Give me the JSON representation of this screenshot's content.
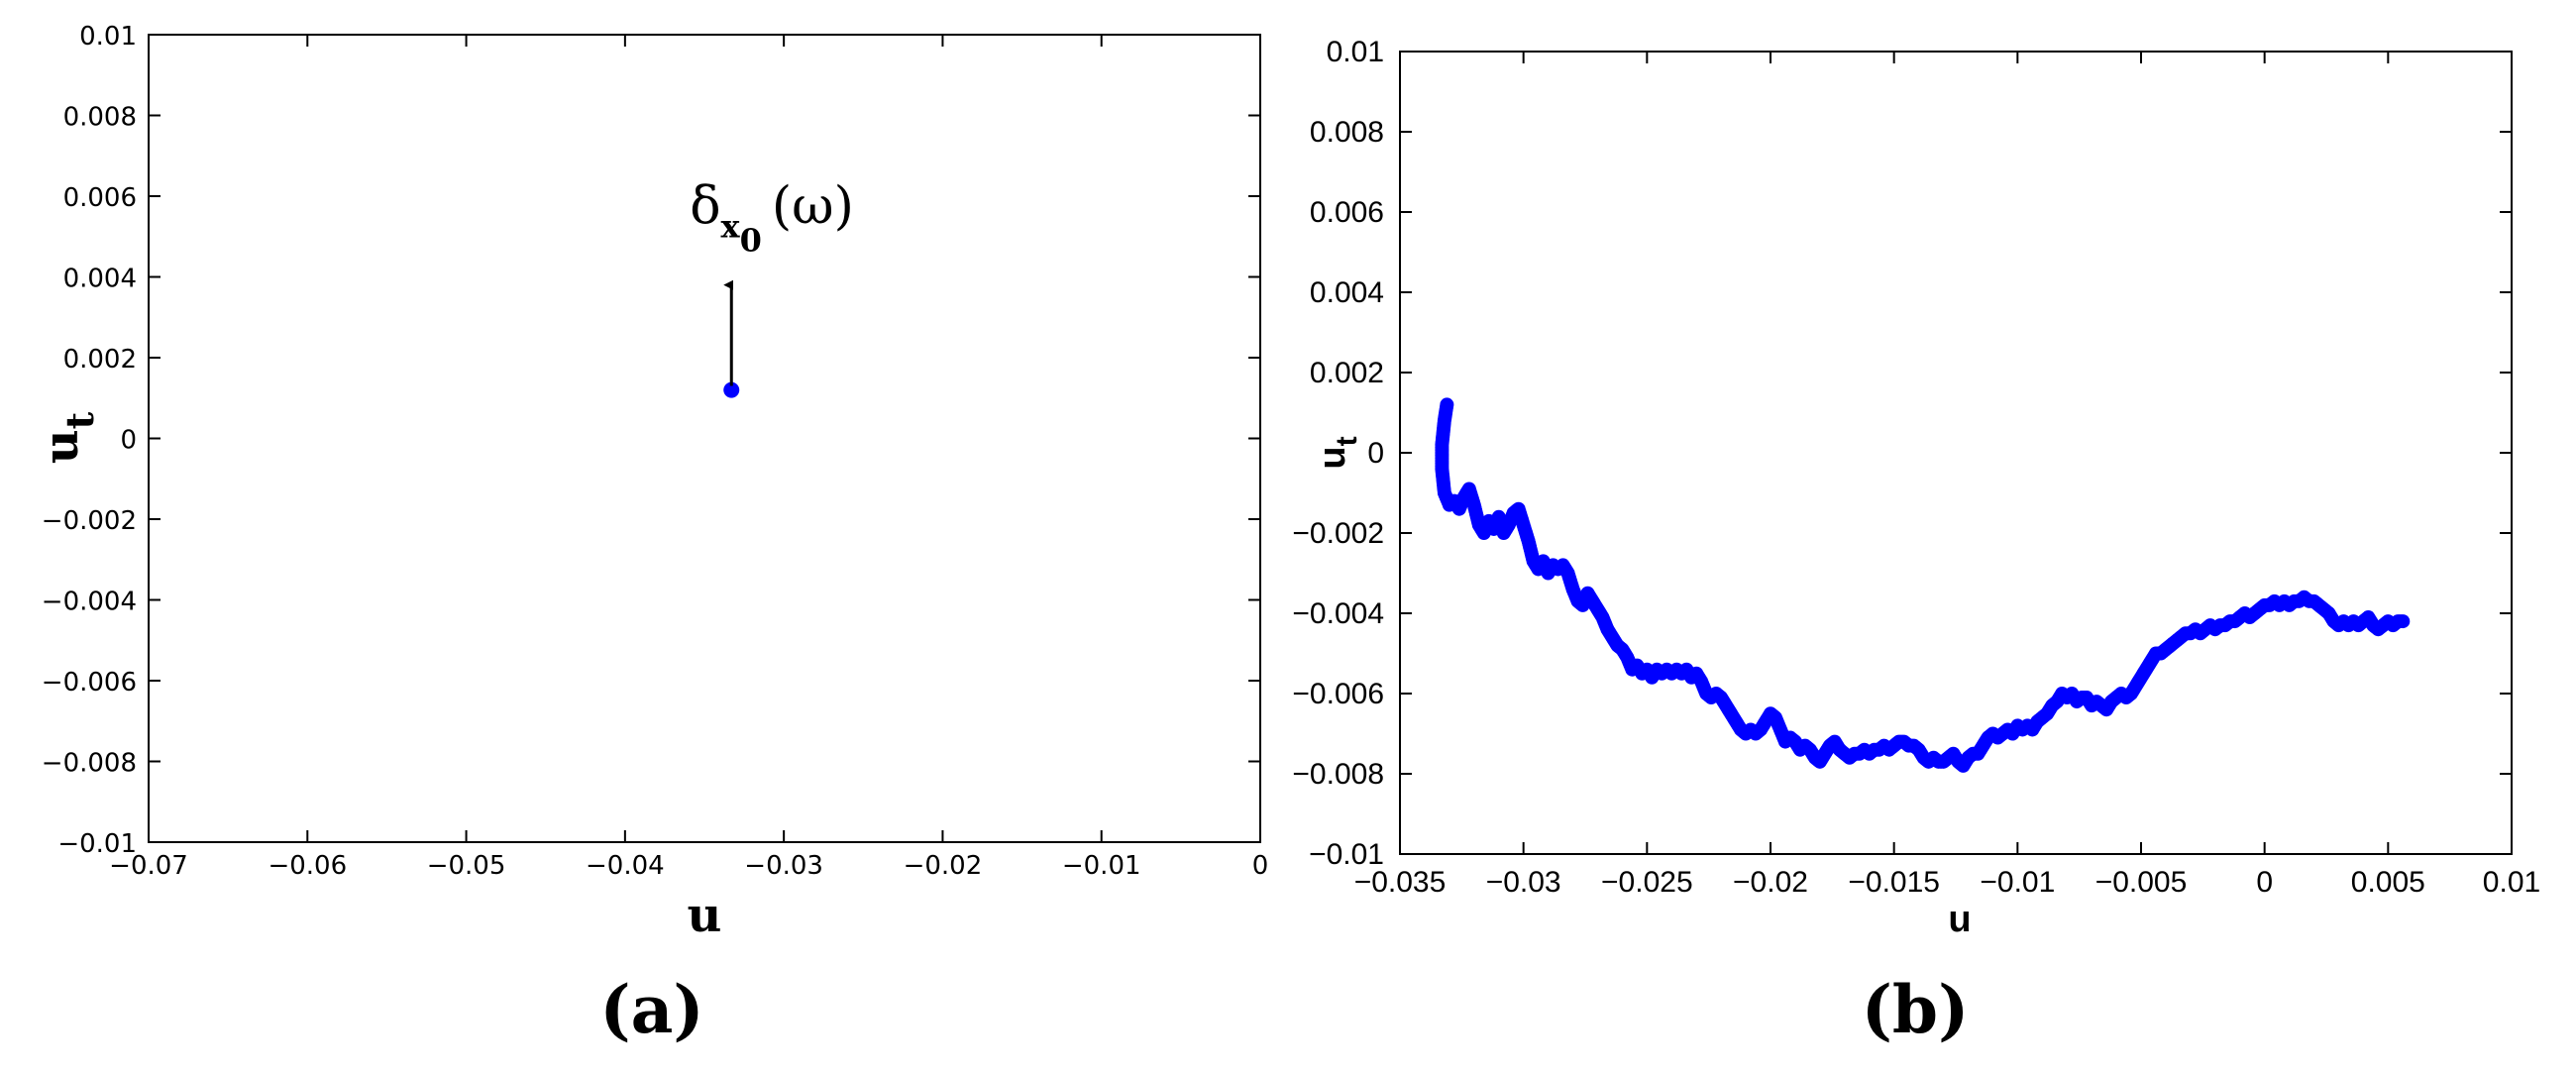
{
  "chart_data": [
    {
      "type": "scatter",
      "caption": "(a)",
      "xlabel": "u",
      "ylabel_main": "u",
      "ylabel_sub": "t",
      "xlim": [
        -0.07,
        0
      ],
      "ylim": [
        -0.01,
        0.01
      ],
      "x_ticks": [
        "-0.07",
        "-0.06",
        "-0.05",
        "-0.04",
        "-0.03",
        "-0.02",
        "-0.01",
        "0"
      ],
      "y_ticks": [
        "0.01",
        "0.008",
        "0.006",
        "0.004",
        "0.002",
        "0",
        "-0.002",
        "-0.004",
        "-0.006",
        "-0.008",
        "-0.01"
      ],
      "grid": false,
      "point_color": "#0000ff",
      "points": [
        {
          "x": -0.0333,
          "y": 0.0012
        }
      ],
      "annotation": {
        "text_delta": "δ",
        "sub_x": "x",
        "sub_0": "0",
        "omega": "(ω)",
        "arrow_from": [
          -0.0333,
          0.0013
        ],
        "arrow_to": [
          -0.0333,
          0.0038
        ]
      }
    },
    {
      "type": "scatter",
      "caption": "(b)",
      "xlabel": "u",
      "ylabel_main": "u",
      "ylabel_sub": "t",
      "xlim": [
        -0.035,
        0.01
      ],
      "ylim": [
        -0.01,
        0.01
      ],
      "x_ticks": [
        "-0.035",
        "-0.03",
        "-0.025",
        "-0.02",
        "-0.015",
        "-0.01",
        "-0.005",
        "0",
        "0.005",
        "0.01"
      ],
      "y_ticks": [
        "0.01",
        "0.008",
        "0.006",
        "0.004",
        "0.002",
        "0",
        "-0.002",
        "-0.004",
        "-0.006",
        "-0.008",
        "-0.01"
      ],
      "grid": false,
      "point_color": "#0000ff",
      "trajectory": [
        [
          -0.0331,
          0.0012
        ],
        [
          -0.0332,
          0.0008
        ],
        [
          -0.0333,
          0.0002
        ],
        [
          -0.0333,
          -0.0004
        ],
        [
          -0.0332,
          -0.001
        ],
        [
          -0.033,
          -0.0013
        ],
        [
          -0.0328,
          -0.0012
        ],
        [
          -0.0326,
          -0.0014
        ],
        [
          -0.0324,
          -0.0011
        ],
        [
          -0.0322,
          -0.0009
        ],
        [
          -0.032,
          -0.0013
        ],
        [
          -0.0318,
          -0.0018
        ],
        [
          -0.0316,
          -0.002
        ],
        [
          -0.0314,
          -0.0017
        ],
        [
          -0.0312,
          -0.0019
        ],
        [
          -0.031,
          -0.0016
        ],
        [
          -0.0308,
          -0.002
        ],
        [
          -0.0306,
          -0.0018
        ],
        [
          -0.0304,
          -0.0015
        ],
        [
          -0.0302,
          -0.0014
        ],
        [
          -0.03,
          -0.0018
        ],
        [
          -0.0298,
          -0.0022
        ],
        [
          -0.0296,
          -0.0027
        ],
        [
          -0.0294,
          -0.0029
        ],
        [
          -0.0292,
          -0.0027
        ],
        [
          -0.029,
          -0.003
        ],
        [
          -0.0288,
          -0.0028
        ],
        [
          -0.0286,
          -0.0029
        ],
        [
          -0.0284,
          -0.0028
        ],
        [
          -0.0282,
          -0.003
        ],
        [
          -0.028,
          -0.0034
        ],
        [
          -0.0278,
          -0.0037
        ],
        [
          -0.0276,
          -0.0038
        ],
        [
          -0.0274,
          -0.0035
        ],
        [
          -0.0272,
          -0.0037
        ],
        [
          -0.027,
          -0.0039
        ],
        [
          -0.0268,
          -0.0041
        ],
        [
          -0.0266,
          -0.0044
        ],
        [
          -0.0264,
          -0.0046
        ],
        [
          -0.0262,
          -0.0048
        ],
        [
          -0.026,
          -0.0049
        ],
        [
          -0.0258,
          -0.0051
        ],
        [
          -0.0256,
          -0.0054
        ],
        [
          -0.0254,
          -0.0053
        ],
        [
          -0.0252,
          -0.0055
        ],
        [
          -0.025,
          -0.0054
        ],
        [
          -0.0248,
          -0.0056
        ],
        [
          -0.0246,
          -0.0054
        ],
        [
          -0.0244,
          -0.0055
        ],
        [
          -0.0242,
          -0.0054
        ],
        [
          -0.024,
          -0.0055
        ],
        [
          -0.0238,
          -0.0054
        ],
        [
          -0.0236,
          -0.0055
        ],
        [
          -0.0234,
          -0.0054
        ],
        [
          -0.0232,
          -0.0056
        ],
        [
          -0.023,
          -0.0055
        ],
        [
          -0.0228,
          -0.0057
        ],
        [
          -0.0226,
          -0.006
        ],
        [
          -0.0224,
          -0.0061
        ],
        [
          -0.0222,
          -0.006
        ],
        [
          -0.022,
          -0.0061
        ],
        [
          -0.0218,
          -0.0063
        ],
        [
          -0.0216,
          -0.0065
        ],
        [
          -0.0214,
          -0.0067
        ],
        [
          -0.0212,
          -0.0069
        ],
        [
          -0.021,
          -0.007
        ],
        [
          -0.0208,
          -0.0069
        ],
        [
          -0.0206,
          -0.007
        ],
        [
          -0.0204,
          -0.0069
        ],
        [
          -0.0202,
          -0.0067
        ],
        [
          -0.02,
          -0.0065
        ],
        [
          -0.0198,
          -0.0066
        ],
        [
          -0.0196,
          -0.0069
        ],
        [
          -0.0194,
          -0.0072
        ],
        [
          -0.0192,
          -0.0071
        ],
        [
          -0.019,
          -0.0072
        ],
        [
          -0.0188,
          -0.0074
        ],
        [
          -0.0186,
          -0.0073
        ],
        [
          -0.0184,
          -0.0074
        ],
        [
          -0.0182,
          -0.0076
        ],
        [
          -0.018,
          -0.0077
        ],
        [
          -0.0178,
          -0.0075
        ],
        [
          -0.0176,
          -0.0073
        ],
        [
          -0.0174,
          -0.0072
        ],
        [
          -0.0172,
          -0.0074
        ],
        [
          -0.017,
          -0.0075
        ],
        [
          -0.0168,
          -0.0076
        ],
        [
          -0.0166,
          -0.0075
        ],
        [
          -0.0164,
          -0.0075
        ],
        [
          -0.0162,
          -0.0074
        ],
        [
          -0.016,
          -0.0075
        ],
        [
          -0.0158,
          -0.0074
        ],
        [
          -0.0156,
          -0.0074
        ],
        [
          -0.0154,
          -0.0073
        ],
        [
          -0.0152,
          -0.0074
        ],
        [
          -0.015,
          -0.0073
        ],
        [
          -0.0148,
          -0.0072
        ],
        [
          -0.0146,
          -0.0072
        ],
        [
          -0.0144,
          -0.0073
        ],
        [
          -0.0142,
          -0.0073
        ],
        [
          -0.014,
          -0.0074
        ],
        [
          -0.0138,
          -0.0076
        ],
        [
          -0.0136,
          -0.0077
        ],
        [
          -0.0134,
          -0.0076
        ],
        [
          -0.0132,
          -0.0077
        ],
        [
          -0.013,
          -0.0077
        ],
        [
          -0.0128,
          -0.0076
        ],
        [
          -0.0126,
          -0.0075
        ],
        [
          -0.0124,
          -0.0077
        ],
        [
          -0.0122,
          -0.0078
        ],
        [
          -0.012,
          -0.0076
        ],
        [
          -0.0118,
          -0.0075
        ],
        [
          -0.0116,
          -0.0075
        ],
        [
          -0.0114,
          -0.0073
        ],
        [
          -0.0112,
          -0.0071
        ],
        [
          -0.011,
          -0.007
        ],
        [
          -0.0108,
          -0.0071
        ],
        [
          -0.0106,
          -0.007
        ],
        [
          -0.0104,
          -0.0069
        ],
        [
          -0.0102,
          -0.007
        ],
        [
          -0.01,
          -0.0068
        ],
        [
          -0.0098,
          -0.0069
        ],
        [
          -0.0096,
          -0.0068
        ],
        [
          -0.0094,
          -0.0069
        ],
        [
          -0.0092,
          -0.0067
        ],
        [
          -0.009,
          -0.0066
        ],
        [
          -0.0088,
          -0.0065
        ],
        [
          -0.0086,
          -0.0063
        ],
        [
          -0.0084,
          -0.0062
        ],
        [
          -0.0082,
          -0.006
        ],
        [
          -0.008,
          -0.0061
        ],
        [
          -0.0078,
          -0.006
        ],
        [
          -0.0076,
          -0.0062
        ],
        [
          -0.0074,
          -0.0061
        ],
        [
          -0.0072,
          -0.0061
        ],
        [
          -0.007,
          -0.0063
        ],
        [
          -0.0068,
          -0.0062
        ],
        [
          -0.0066,
          -0.0063
        ],
        [
          -0.0064,
          -0.0064
        ],
        [
          -0.0062,
          -0.0062
        ],
        [
          -0.006,
          -0.0061
        ],
        [
          -0.0058,
          -0.006
        ],
        [
          -0.0056,
          -0.0061
        ],
        [
          -0.0054,
          -0.006
        ],
        [
          -0.0052,
          -0.0058
        ],
        [
          -0.005,
          -0.0056
        ],
        [
          -0.0048,
          -0.0054
        ],
        [
          -0.0046,
          -0.0052
        ],
        [
          -0.0044,
          -0.005
        ],
        [
          -0.0042,
          -0.005
        ],
        [
          -0.004,
          -0.0049
        ],
        [
          -0.0038,
          -0.0048
        ],
        [
          -0.0036,
          -0.0047
        ],
        [
          -0.0034,
          -0.0046
        ],
        [
          -0.0032,
          -0.0045
        ],
        [
          -0.003,
          -0.0045
        ],
        [
          -0.0028,
          -0.0044
        ],
        [
          -0.0026,
          -0.0045
        ],
        [
          -0.0024,
          -0.0044
        ],
        [
          -0.0022,
          -0.0043
        ],
        [
          -0.002,
          -0.0044
        ],
        [
          -0.0018,
          -0.0043
        ],
        [
          -0.0016,
          -0.0043
        ],
        [
          -0.0014,
          -0.0042
        ],
        [
          -0.0012,
          -0.0042
        ],
        [
          -0.001,
          -0.0041
        ],
        [
          -0.0008,
          -0.004
        ],
        [
          -0.0006,
          -0.0041
        ],
        [
          -0.0004,
          -0.004
        ],
        [
          -0.0002,
          -0.0039
        ],
        [
          0.0,
          -0.0038
        ],
        [
          0.0002,
          -0.0038
        ],
        [
          0.0004,
          -0.0037
        ],
        [
          0.0006,
          -0.0038
        ],
        [
          0.0008,
          -0.0037
        ],
        [
          0.001,
          -0.0038
        ],
        [
          0.0012,
          -0.0037
        ],
        [
          0.0014,
          -0.0037
        ],
        [
          0.0016,
          -0.0036
        ],
        [
          0.0018,
          -0.0037
        ],
        [
          0.002,
          -0.0037
        ],
        [
          0.0022,
          -0.0038
        ],
        [
          0.0024,
          -0.0039
        ],
        [
          0.0026,
          -0.004
        ],
        [
          0.0028,
          -0.0042
        ],
        [
          0.003,
          -0.0043
        ],
        [
          0.0032,
          -0.0042
        ],
        [
          0.0034,
          -0.0043
        ],
        [
          0.0036,
          -0.0042
        ],
        [
          0.0038,
          -0.0043
        ],
        [
          0.004,
          -0.0042
        ],
        [
          0.0042,
          -0.0041
        ],
        [
          0.0044,
          -0.0043
        ],
        [
          0.0046,
          -0.0044
        ],
        [
          0.0048,
          -0.0043
        ],
        [
          0.005,
          -0.0042
        ],
        [
          0.0052,
          -0.0043
        ],
        [
          0.0054,
          -0.0042
        ],
        [
          0.0056,
          -0.0042
        ]
      ]
    }
  ]
}
